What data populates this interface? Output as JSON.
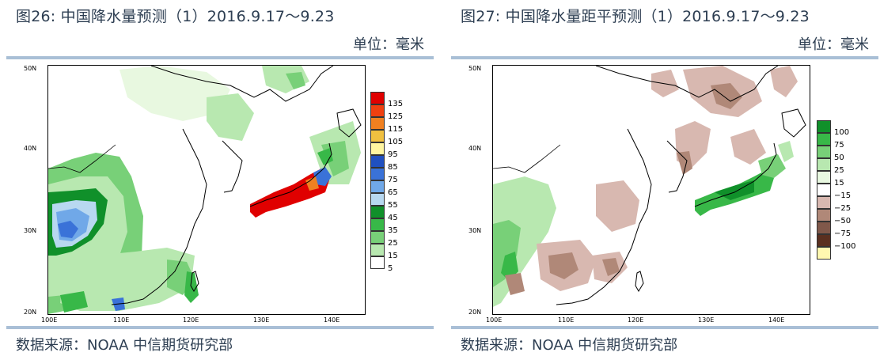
{
  "left": {
    "title": "图26: 中国降水量预测（1）2016.9.17～9.23",
    "unit": "单位：毫米",
    "source": "数据来源：NOAA 中信期货研究部",
    "lat_labels": [
      "50N",
      "40N",
      "30N",
      "20N"
    ],
    "lon_labels": [
      "100E",
      "110E",
      "120E",
      "130E",
      "140E"
    ],
    "legend": {
      "labels": [
        "135",
        "125",
        "115",
        "105",
        "95",
        "85",
        "75",
        "65",
        "55",
        "45",
        "35",
        "25",
        "15",
        "5"
      ],
      "colors": [
        "#e00000",
        "#f04010",
        "#f08020",
        "#f0c040",
        "#fff5a0",
        "#2050c0",
        "#3a72d8",
        "#70a8e8",
        "#b8d8f0",
        "#10902a",
        "#38b848",
        "#78d078",
        "#b8e8b0",
        "#ffffff"
      ]
    }
  },
  "right": {
    "title": "图27: 中国降水量距平预测（1）2016.9.17～9.23",
    "unit": "单位：毫米",
    "source": "数据来源：NOAA 中信期货研究部",
    "lat_labels": [
      "50N",
      "40N",
      "30N",
      "20N"
    ],
    "lon_labels": [
      "100E",
      "110E",
      "120E",
      "130E",
      "140E"
    ],
    "legend": {
      "labels": [
        "100",
        "75",
        "50",
        "25",
        "15",
        "−15",
        "−25",
        "−50",
        "−75",
        "−100"
      ],
      "colors": [
        "#10902a",
        "#38b848",
        "#78d078",
        "#b8e8b0",
        "#e8f8e0",
        "#ffffff",
        "#d8b8b0",
        "#b08878",
        "#80584a",
        "#5a3020",
        "#fff8b0"
      ]
    }
  }
}
